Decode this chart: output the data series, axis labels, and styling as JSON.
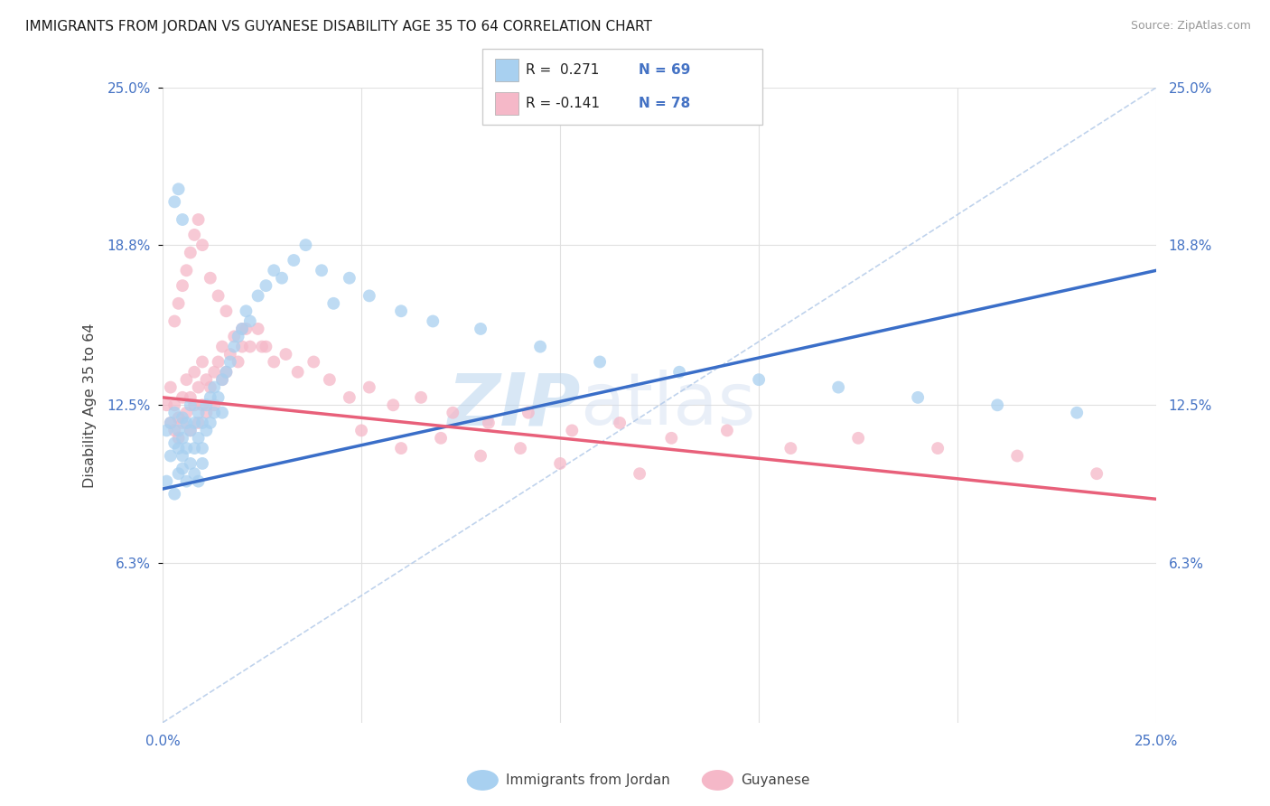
{
  "title": "IMMIGRANTS FROM JORDAN VS GUYANESE DISABILITY AGE 35 TO 64 CORRELATION CHART",
  "source": "Source: ZipAtlas.com",
  "ylabel": "Disability Age 35 to 64",
  "xlim": [
    0.0,
    0.25
  ],
  "ylim": [
    0.0,
    0.25
  ],
  "ytick_labels": [
    "6.3%",
    "12.5%",
    "18.8%",
    "25.0%"
  ],
  "ytick_values": [
    0.063,
    0.125,
    0.188,
    0.25
  ],
  "xtick_positions": [
    0.0,
    0.05,
    0.1,
    0.15,
    0.2,
    0.25
  ],
  "grid_color": "#e0e0e0",
  "background_color": "#ffffff",
  "color_jordan": "#a8d0f0",
  "color_guyanese": "#f5b8c8",
  "color_jordan_line": "#3a6ec8",
  "color_guyanese_line": "#e8607a",
  "color_diagonal": "#b0c8e8",
  "watermark_zip": "ZIP",
  "watermark_atlas": "atlas",
  "jordan_x": [
    0.001,
    0.001,
    0.002,
    0.002,
    0.003,
    0.003,
    0.003,
    0.004,
    0.004,
    0.004,
    0.005,
    0.005,
    0.005,
    0.005,
    0.006,
    0.006,
    0.006,
    0.007,
    0.007,
    0.007,
    0.008,
    0.008,
    0.008,
    0.009,
    0.009,
    0.009,
    0.01,
    0.01,
    0.01,
    0.011,
    0.011,
    0.012,
    0.012,
    0.013,
    0.013,
    0.014,
    0.015,
    0.015,
    0.016,
    0.017,
    0.018,
    0.019,
    0.02,
    0.021,
    0.022,
    0.024,
    0.026,
    0.028,
    0.03,
    0.033,
    0.036,
    0.04,
    0.043,
    0.047,
    0.052,
    0.06,
    0.068,
    0.08,
    0.095,
    0.11,
    0.13,
    0.15,
    0.17,
    0.19,
    0.21,
    0.23,
    0.003,
    0.004,
    0.005
  ],
  "jordan_y": [
    0.095,
    0.115,
    0.105,
    0.118,
    0.11,
    0.122,
    0.09,
    0.108,
    0.115,
    0.098,
    0.1,
    0.112,
    0.12,
    0.105,
    0.118,
    0.108,
    0.095,
    0.125,
    0.115,
    0.102,
    0.118,
    0.108,
    0.098,
    0.122,
    0.112,
    0.095,
    0.118,
    0.108,
    0.102,
    0.125,
    0.115,
    0.128,
    0.118,
    0.132,
    0.122,
    0.128,
    0.135,
    0.122,
    0.138,
    0.142,
    0.148,
    0.152,
    0.155,
    0.162,
    0.158,
    0.168,
    0.172,
    0.178,
    0.175,
    0.182,
    0.188,
    0.178,
    0.165,
    0.175,
    0.168,
    0.162,
    0.158,
    0.155,
    0.148,
    0.142,
    0.138,
    0.135,
    0.132,
    0.128,
    0.125,
    0.122,
    0.205,
    0.21,
    0.198
  ],
  "guyanese_x": [
    0.001,
    0.002,
    0.002,
    0.003,
    0.003,
    0.004,
    0.004,
    0.005,
    0.005,
    0.006,
    0.006,
    0.007,
    0.007,
    0.008,
    0.008,
    0.009,
    0.009,
    0.01,
    0.01,
    0.011,
    0.011,
    0.012,
    0.013,
    0.013,
    0.014,
    0.015,
    0.015,
    0.016,
    0.017,
    0.018,
    0.019,
    0.02,
    0.021,
    0.022,
    0.024,
    0.026,
    0.028,
    0.031,
    0.034,
    0.038,
    0.042,
    0.047,
    0.052,
    0.058,
    0.065,
    0.073,
    0.082,
    0.092,
    0.103,
    0.115,
    0.128,
    0.142,
    0.158,
    0.175,
    0.195,
    0.215,
    0.235,
    0.05,
    0.06,
    0.07,
    0.08,
    0.09,
    0.1,
    0.12,
    0.003,
    0.004,
    0.005,
    0.006,
    0.007,
    0.008,
    0.009,
    0.01,
    0.012,
    0.014,
    0.016,
    0.02,
    0.025
  ],
  "guyanese_y": [
    0.125,
    0.118,
    0.132,
    0.125,
    0.115,
    0.12,
    0.112,
    0.118,
    0.128,
    0.122,
    0.135,
    0.128,
    0.115,
    0.125,
    0.138,
    0.132,
    0.118,
    0.125,
    0.142,
    0.135,
    0.122,
    0.132,
    0.138,
    0.125,
    0.142,
    0.135,
    0.148,
    0.138,
    0.145,
    0.152,
    0.142,
    0.148,
    0.155,
    0.148,
    0.155,
    0.148,
    0.142,
    0.145,
    0.138,
    0.142,
    0.135,
    0.128,
    0.132,
    0.125,
    0.128,
    0.122,
    0.118,
    0.122,
    0.115,
    0.118,
    0.112,
    0.115,
    0.108,
    0.112,
    0.108,
    0.105,
    0.098,
    0.115,
    0.108,
    0.112,
    0.105,
    0.108,
    0.102,
    0.098,
    0.158,
    0.165,
    0.172,
    0.178,
    0.185,
    0.192,
    0.198,
    0.188,
    0.175,
    0.168,
    0.162,
    0.155,
    0.148
  ],
  "jordan_line_x0": 0.0,
  "jordan_line_x1": 0.25,
  "jordan_line_y0": 0.092,
  "jordan_line_y1": 0.178,
  "guyanese_line_x0": 0.0,
  "guyanese_line_x1": 0.25,
  "guyanese_line_y0": 0.128,
  "guyanese_line_y1": 0.088
}
